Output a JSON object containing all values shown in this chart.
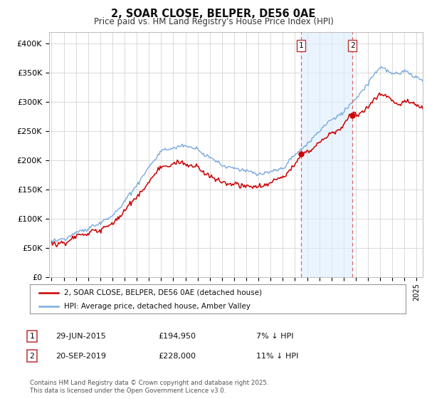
{
  "title": "2, SOAR CLOSE, BELPER, DE56 0AE",
  "subtitle": "Price paid vs. HM Land Registry's House Price Index (HPI)",
  "ylabel_ticks": [
    "£0",
    "£50K",
    "£100K",
    "£150K",
    "£200K",
    "£250K",
    "£300K",
    "£350K",
    "£400K"
  ],
  "ytick_values": [
    0,
    50000,
    100000,
    150000,
    200000,
    250000,
    300000,
    350000,
    400000
  ],
  "ylim": [
    0,
    420000
  ],
  "xlim_start": 1994.8,
  "xlim_end": 2025.5,
  "sale1_x": 2015.49,
  "sale1_y": 194950,
  "sale1_label": "1",
  "sale2_x": 2019.72,
  "sale2_y": 228000,
  "sale2_label": "2",
  "red_line_color": "#cc0000",
  "blue_line_color": "#7aaadd",
  "blue_fill_color": "#ddeeff",
  "span_fill_color": "#ddeeff",
  "dashed_line_color": "#dd6666",
  "legend_label1": "2, SOAR CLOSE, BELPER, DE56 0AE (detached house)",
  "legend_label2": "HPI: Average price, detached house, Amber Valley",
  "annotation1_date": "29-JUN-2015",
  "annotation1_price": "£194,950",
  "annotation1_hpi": "7% ↓ HPI",
  "annotation2_date": "20-SEP-2019",
  "annotation2_price": "£228,000",
  "annotation2_hpi": "11% ↓ HPI",
  "footer": "Contains HM Land Registry data © Crown copyright and database right 2025.\nThis data is licensed under the Open Government Licence v3.0.",
  "background_color": "#ffffff",
  "grid_color": "#cccccc"
}
